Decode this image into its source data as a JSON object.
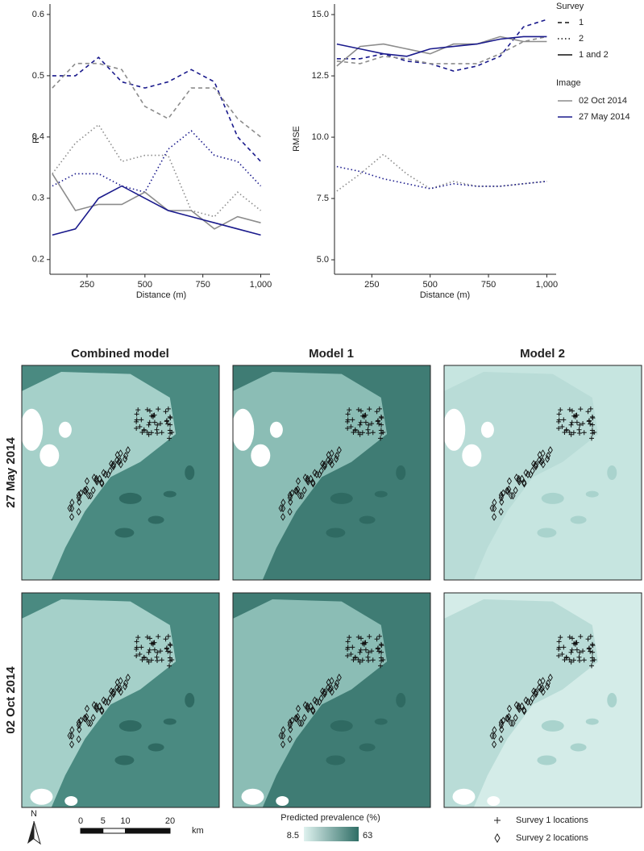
{
  "chart_data": [
    {
      "type": "line",
      "x_label": "Distance (m)",
      "y_label": "R²",
      "x": [
        100,
        200,
        300,
        400,
        500,
        600,
        700,
        800,
        900,
        1000
      ],
      "xlim": [
        90,
        1040
      ],
      "xticks": [
        250,
        500,
        750,
        {
          "value": 1000,
          "label": "1,000"
        }
      ],
      "ylim": [
        0.176,
        0.617
      ],
      "yticks": [
        0.2,
        0.3,
        0.4,
        0.5,
        0.6
      ],
      "series": [
        {
          "color": "#1a1a8c",
          "dash": "dashed",
          "values": [
            0.5,
            0.5,
            0.53,
            0.49,
            0.48,
            0.49,
            0.51,
            0.49,
            0.4,
            0.36
          ]
        },
        {
          "color": "#8c8c8c",
          "dash": "dashed",
          "values": [
            0.48,
            0.52,
            0.52,
            0.51,
            0.45,
            0.43,
            0.48,
            0.48,
            0.43,
            0.4
          ]
        },
        {
          "color": "#8c8c8c",
          "dash": "dotted",
          "values": [
            0.34,
            0.39,
            0.42,
            0.36,
            0.37,
            0.37,
            0.28,
            0.27,
            0.31,
            0.28
          ]
        },
        {
          "color": "#1a1a8c",
          "dash": "dotted",
          "values": [
            0.32,
            0.34,
            0.34,
            0.32,
            0.31,
            0.38,
            0.41,
            0.37,
            0.36,
            0.32
          ]
        },
        {
          "color": "#8c8c8c",
          "dash": "solid",
          "values": [
            0.34,
            0.28,
            0.29,
            0.29,
            0.31,
            0.28,
            0.28,
            0.25,
            0.27,
            0.26
          ]
        },
        {
          "color": "#1a1a8c",
          "dash": "solid",
          "values": [
            0.24,
            0.25,
            0.3,
            0.32,
            0.3,
            0.28,
            0.27,
            0.26,
            0.25,
            0.24
          ]
        }
      ]
    },
    {
      "type": "line",
      "x_label": "Distance (m)",
      "y_label": "RMSE",
      "x": [
        100,
        200,
        300,
        400,
        500,
        600,
        700,
        800,
        900,
        1000
      ],
      "xlim": [
        90,
        1040
      ],
      "xticks": [
        250,
        500,
        750,
        {
          "value": 1000,
          "label": "1,000"
        }
      ],
      "ylim": [
        4.41,
        15.43
      ],
      "yticks": [
        {
          "value": 5,
          "label": "5.0"
        },
        {
          "value": 7.5,
          "label": "7.5"
        },
        {
          "value": 10,
          "label": "10.0"
        },
        {
          "value": 12.5,
          "label": "12.5"
        },
        {
          "value": 15,
          "label": "15.0"
        }
      ],
      "series": [
        {
          "color": "#1a1a8c",
          "dash": "dashed",
          "values": [
            13.2,
            13.2,
            13.4,
            13.1,
            13.0,
            12.7,
            12.9,
            13.3,
            14.5,
            14.8
          ]
        },
        {
          "color": "#8c8c8c",
          "dash": "dashed",
          "values": [
            13.1,
            13.0,
            13.3,
            13.2,
            13.0,
            13.0,
            13.0,
            13.4,
            13.9,
            14.1
          ]
        },
        {
          "color": "#8c8c8c",
          "dash": "solid",
          "values": [
            12.9,
            13.7,
            13.8,
            13.6,
            13.4,
            13.8,
            13.8,
            14.1,
            13.9,
            13.9
          ]
        },
        {
          "color": "#1a1a8c",
          "dash": "solid",
          "values": [
            13.8,
            13.6,
            13.4,
            13.3,
            13.6,
            13.7,
            13.8,
            14.0,
            14.1,
            14.1
          ]
        },
        {
          "color": "#8c8c8c",
          "dash": "dotted",
          "values": [
            7.8,
            8.5,
            9.3,
            8.5,
            7.9,
            8.2,
            8.0,
            8.0,
            8.1,
            8.2
          ]
        },
        {
          "color": "#1a1a8c",
          "dash": "dotted",
          "values": [
            8.8,
            8.6,
            8.3,
            8.1,
            7.9,
            8.1,
            8.0,
            8.0,
            8.1,
            8.2
          ]
        }
      ],
      "legend": {
        "survey": {
          "title": "Survey",
          "entries": [
            {
              "label": "1",
              "dash": "dashed"
            },
            {
              "label": "2",
              "dash": "dotted"
            },
            {
              "label": "1 and 2",
              "dash": "solid"
            }
          ]
        },
        "image": {
          "title": "Image",
          "entries": [
            {
              "label": "02 Oct 2014",
              "color": "#8c8c8c"
            },
            {
              "label": "27 May 2014",
              "color": "#1a1a8c"
            }
          ]
        }
      }
    }
  ],
  "maps": {
    "columns": [
      "Combined model",
      "Model 1",
      "Model 2"
    ],
    "rows": [
      "27 May 2014",
      "02 Oct 2014"
    ],
    "north": "N",
    "scale_bar": {
      "ticks": [
        0,
        5,
        10,
        20
      ],
      "unit": "km"
    },
    "colorbar": {
      "title": "Predicted prevalence (%)",
      "min": 8.5,
      "max": 63
    },
    "point_legend": [
      "Survey 1 locations",
      "Survey 2 locations"
    ]
  }
}
